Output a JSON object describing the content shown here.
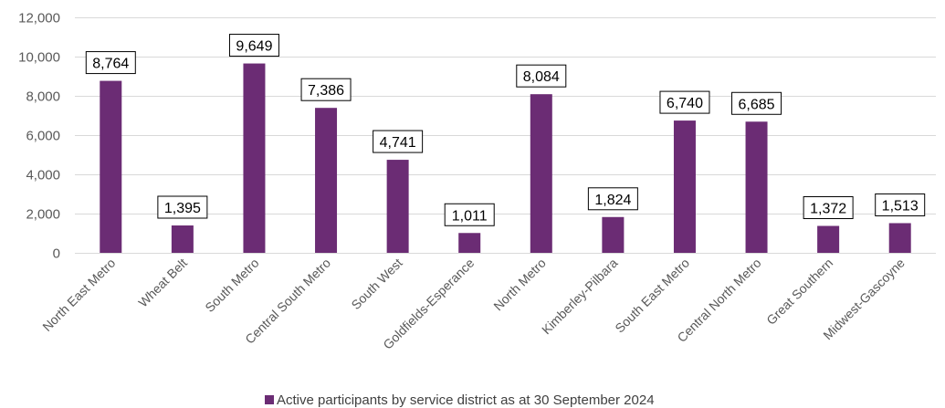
{
  "chart_data": {
    "type": "bar",
    "categories": [
      "North East Metro",
      "Wheat Belt",
      "South Metro",
      "Central South Metro",
      "South West",
      "Goldfields-Esperance",
      "North Metro",
      "Kimberley-Pilbara",
      "South East Metro",
      "Central North Metro",
      "Great Southern",
      "Midwest-Gascoyne"
    ],
    "series": [
      {
        "name": "Active participants by service district as at 30 September 2024",
        "values": [
          8764,
          1395,
          9649,
          7386,
          4741,
          1011,
          8084,
          1824,
          6740,
          6685,
          1372,
          1513
        ],
        "data_labels": [
          "8,764",
          "1,395",
          "9,649",
          "7,386",
          "4,741",
          "1,011",
          "8,084",
          "1,824",
          "6,740",
          "6,685",
          "1,372",
          "1,513"
        ]
      }
    ],
    "title": "",
    "xlabel": "",
    "ylabel": "",
    "ylim": [
      0,
      12000
    ],
    "yticks": [
      0,
      2000,
      4000,
      6000,
      8000,
      10000,
      12000
    ],
    "ytick_labels": [
      "0",
      "2,000",
      "4,000",
      "6,000",
      "8,000",
      "10,000",
      "12,000"
    ],
    "grid": true,
    "legend_position": "bottom",
    "colors": {
      "bar": "#6B2C74",
      "grid": "#D9D9D9",
      "axis_text": "#595959"
    }
  }
}
